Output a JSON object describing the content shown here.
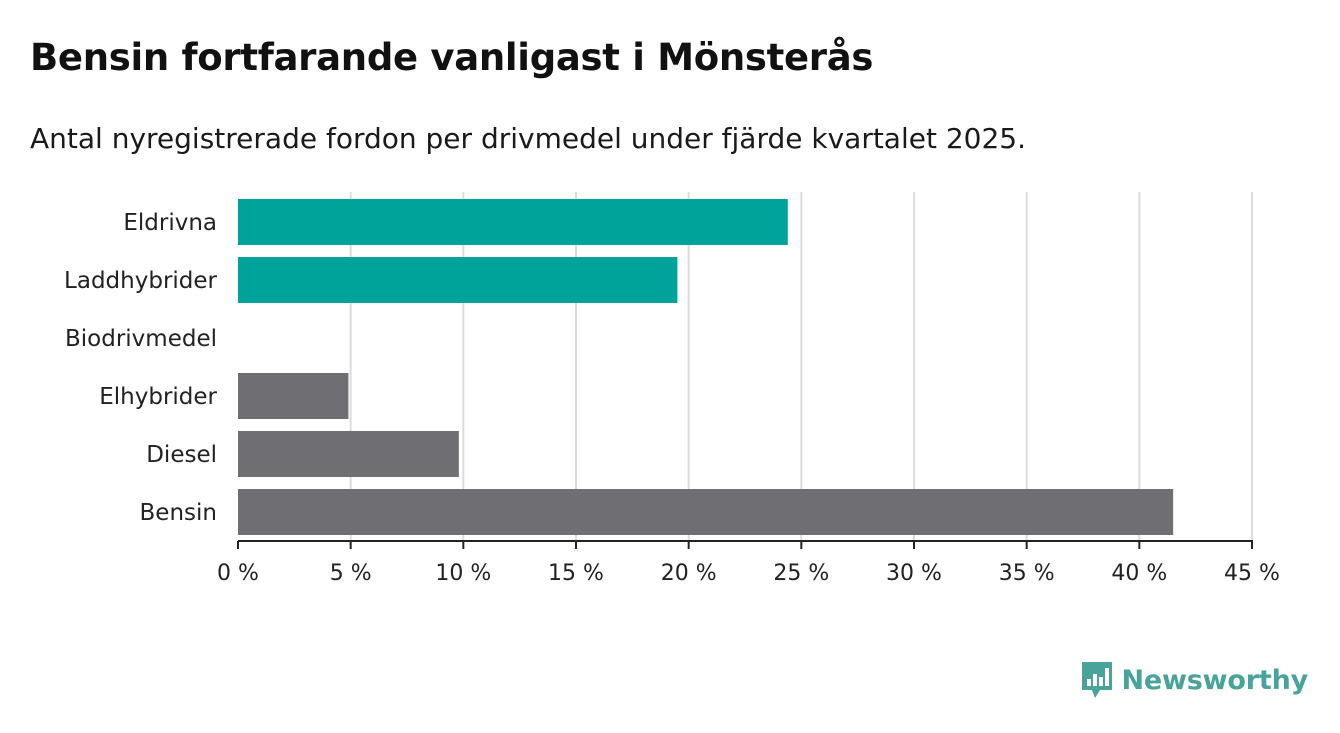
{
  "header": {
    "title": "Bensin fortfarande vanligast i Mönsterås",
    "subtitle": "Antal nyregistrerade fordon per drivmedel under fjärde kvartalet 2025."
  },
  "colors": {
    "teal": "#00a39a",
    "gray": "#6e6e73",
    "grid": "#dcdcdc",
    "axis": "#222222",
    "brand": "#48a39b"
  },
  "chart_data": {
    "type": "bar",
    "orientation": "horizontal",
    "title": "Bensin fortfarande vanligast i Mönsterås",
    "subtitle": "Antal nyregistrerade fordon per drivmedel under fjärde kvartalet 2025.",
    "xlabel": "",
    "ylabel": "",
    "xlim": [
      0,
      45
    ],
    "x_ticks": [
      0,
      5,
      10,
      15,
      20,
      25,
      30,
      35,
      40,
      45
    ],
    "x_tick_labels": [
      "0 %",
      "5 %",
      "10 %",
      "15 %",
      "20 %",
      "25 %",
      "30 %",
      "35 %",
      "40 %",
      "45 %"
    ],
    "grid": true,
    "categories": [
      "Eldrivna",
      "Laddhybrider",
      "Biodrivmedel",
      "Elhybrider",
      "Diesel",
      "Bensin"
    ],
    "values": [
      24.4,
      19.5,
      0,
      4.9,
      9.8,
      41.5
    ],
    "bar_colors": [
      "teal",
      "teal",
      "teal",
      "gray",
      "gray",
      "gray"
    ]
  },
  "branding": {
    "logo_text": "Newsworthy",
    "logo_icon": "newsworthy-chart-icon"
  }
}
